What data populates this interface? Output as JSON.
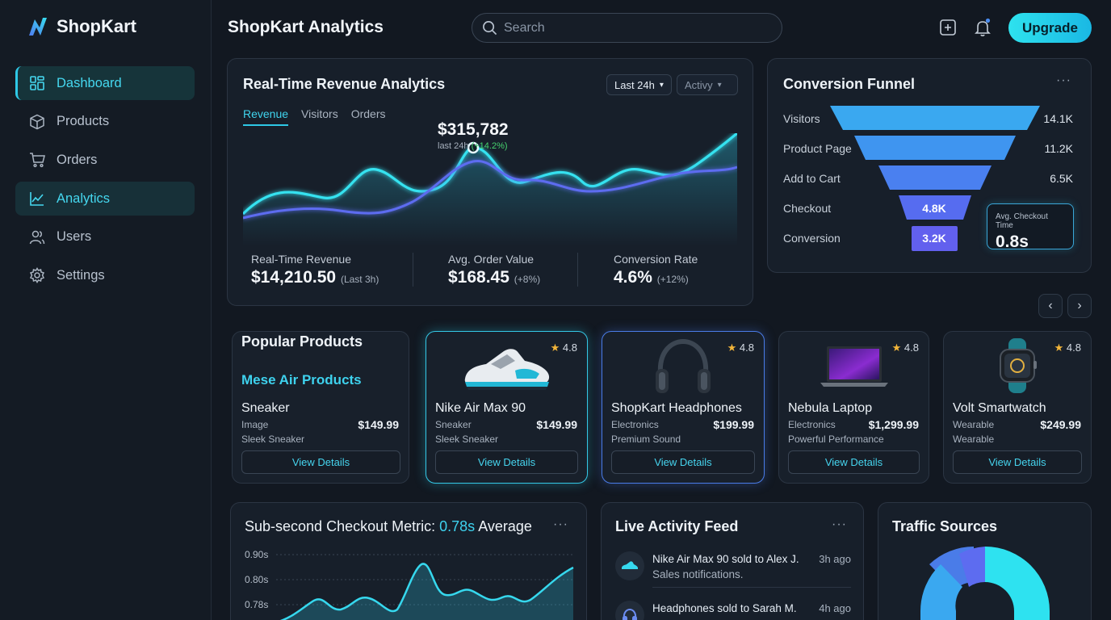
{
  "app": {
    "name": "ShopKart",
    "page_title": "ShopKart Analytics"
  },
  "sidebar": {
    "items": [
      {
        "label": "Dashboard",
        "icon": "grid-icon"
      },
      {
        "label": "Products",
        "icon": "box-icon"
      },
      {
        "label": "Orders",
        "icon": "cart-icon"
      },
      {
        "label": "Analytics",
        "icon": "chart-line-icon"
      },
      {
        "label": "Users",
        "icon": "users-icon"
      },
      {
        "label": "Settings",
        "icon": "gear-icon"
      }
    ]
  },
  "header": {
    "search_placeholder": "Search",
    "upgrade_label": "Upgrade"
  },
  "revenue": {
    "title": "Real-Time Revenue Analytics",
    "range_label": "Last 24h",
    "metric_select": "Activy",
    "tabs": [
      "Revenue",
      "Visitors",
      "Orders"
    ],
    "peak_value": "$315,782",
    "peak_sub_prefix": "last 24h",
    "peak_change": "(+14.2%)",
    "kpis": [
      {
        "label": "Real-Time Revenue",
        "value": "$14,210.50",
        "note": "(Last 3h)"
      },
      {
        "label": "Avg. Order Value",
        "value": "$168.45",
        "note": "(+8%)"
      },
      {
        "label": "Conversion Rate",
        "value": "4.6%",
        "note": "(+12%)"
      }
    ]
  },
  "funnel": {
    "title": "Conversion Funnel",
    "stages": [
      {
        "label": "Visitors",
        "value": "14.1K"
      },
      {
        "label": "Product Page",
        "value": "11.2K"
      },
      {
        "label": "Add to Cart",
        "value": "6.5K"
      },
      {
        "label": "Checkout",
        "value": "4.8K"
      },
      {
        "label": "Conversion",
        "value": "3.2K"
      }
    ],
    "checkout_time_label": "Avg. Checkout Time",
    "checkout_time_value": "0.8s"
  },
  "products": {
    "section_title": "Popular Products",
    "promo_title": "Mese Air Products",
    "view_label": "View Details",
    "items": [
      {
        "name": "Sneaker",
        "category": "Image",
        "desc": "Sleek Sneaker",
        "price": "$149.99",
        "rating": ""
      },
      {
        "name": "Nike Air Max 90",
        "category": "Sneaker",
        "desc": "Sleek Sneaker",
        "price": "$149.99",
        "rating": "4.8"
      },
      {
        "name": "ShopKart Headphones",
        "category": "Electronics",
        "desc": "Premium Sound",
        "price": "$199.99",
        "rating": "4.8"
      },
      {
        "name": "Nebula Laptop",
        "category": "Electronics",
        "desc": "Powerful Performance",
        "price": "$1,299.99",
        "rating": "4.8"
      },
      {
        "name": "Volt Smartwatch",
        "category": "Wearable",
        "desc": "Wearable",
        "price": "$249.99",
        "rating": "4.8"
      }
    ]
  },
  "checkout_metric": {
    "title_prefix": "Sub-second Checkout Metric:",
    "title_value": "0.78s",
    "title_suffix": "Average",
    "y_ticks": [
      "0.90s",
      "0.80s",
      "0.78s"
    ]
  },
  "feed": {
    "title": "Live Activity Feed",
    "items": [
      {
        "title": "Nike Air Max 90 sold to Alex J.",
        "sub": "Sales notifications.",
        "time": "3h ago"
      },
      {
        "title": "Headphones sold to Sarah M.",
        "sub": "",
        "time": "4h ago"
      }
    ]
  },
  "traffic": {
    "title": "Traffic Sources"
  },
  "colors": {
    "accent": "#2ec8e6",
    "accent_blue": "#4a7ce8",
    "bg": "#121821",
    "card": "#171f2a",
    "positive": "#46d36f"
  }
}
